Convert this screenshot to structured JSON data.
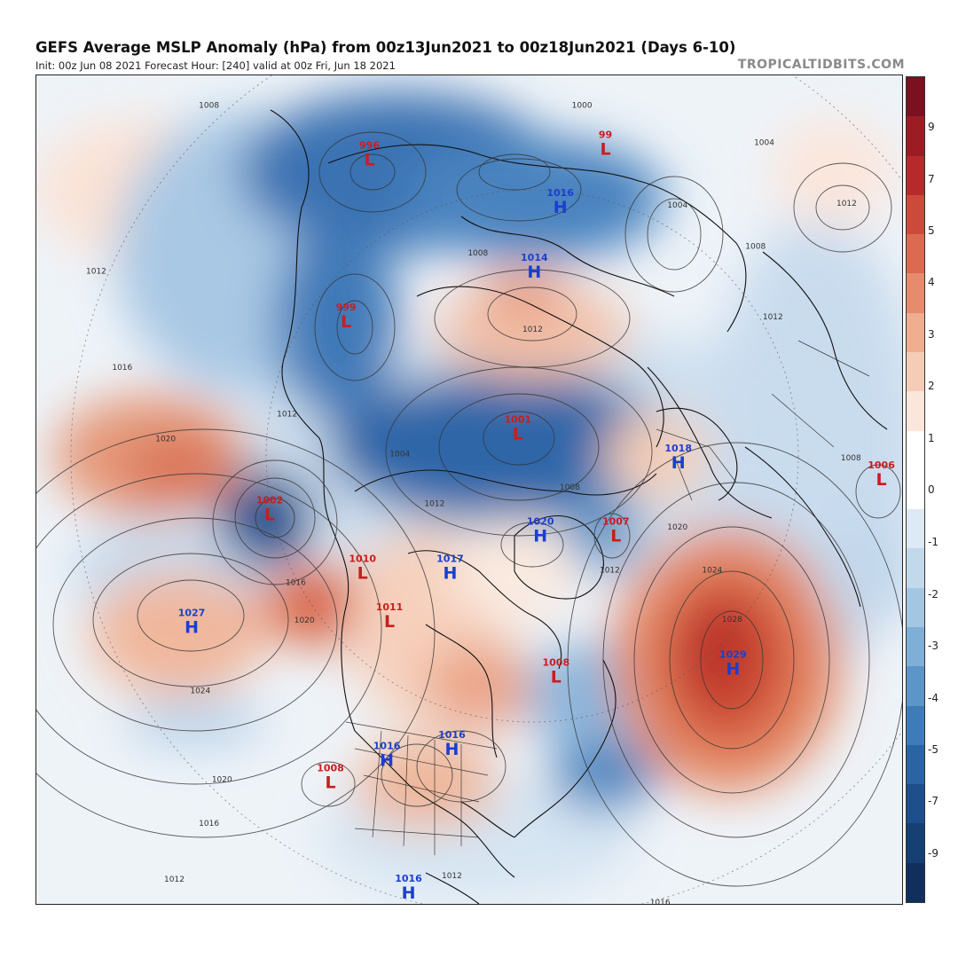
{
  "header": {
    "title": "GEFS Average MSLP Anomaly (hPa) from 00z13Jun2021 to 00z18Jun2021 (Days 6-10)",
    "subtitle": "Init: 00z Jun 08 2021   Forecast Hour: [240]   valid at 00z Fri, Jun 18 2021",
    "credit": "TROPICALTIDBITS.COM"
  },
  "colorbar": {
    "labels": [
      "9",
      "7",
      "5",
      "4",
      "3",
      "2",
      "1",
      "0",
      "-1",
      "-2",
      "-3",
      "-4",
      "-5",
      "-7",
      "-9"
    ],
    "colors": [
      "#7a1020",
      "#9c1c24",
      "#b72a2c",
      "#cc4a3a",
      "#db6a50",
      "#e68c6c",
      "#efae90",
      "#f5ccb6",
      "#fae6da",
      "#ffffff",
      "#ffffff",
      "#dde9f4",
      "#c2d9ec",
      "#a3c6e2",
      "#7fafd6",
      "#5c95c8",
      "#3d7cb8",
      "#2a64a4",
      "#1e4f8c",
      "#163f74",
      "#102f5c"
    ]
  },
  "pressure_centers": [
    {
      "type": "L",
      "value": "996",
      "fx": 0.385,
      "fy": 0.1
    },
    {
      "type": "L",
      "value": "99",
      "fx": 0.657,
      "fy": 0.087
    },
    {
      "type": "H",
      "value": "1016",
      "fx": 0.605,
      "fy": 0.157
    },
    {
      "type": "H",
      "value": "1014",
      "fx": 0.575,
      "fy": 0.235
    },
    {
      "type": "L",
      "value": "999",
      "fx": 0.358,
      "fy": 0.295
    },
    {
      "type": "L",
      "value": "1001",
      "fx": 0.556,
      "fy": 0.43
    },
    {
      "type": "H",
      "value": "1018",
      "fx": 0.741,
      "fy": 0.465
    },
    {
      "type": "L",
      "value": "1006",
      "fx": 0.975,
      "fy": 0.485
    },
    {
      "type": "L",
      "value": "1002",
      "fx": 0.27,
      "fy": 0.527
    },
    {
      "type": "H",
      "value": "1020",
      "fx": 0.582,
      "fy": 0.553
    },
    {
      "type": "L",
      "value": "1007",
      "fx": 0.669,
      "fy": 0.553
    },
    {
      "type": "L",
      "value": "1010",
      "fx": 0.377,
      "fy": 0.598
    },
    {
      "type": "H",
      "value": "1017",
      "fx": 0.478,
      "fy": 0.598
    },
    {
      "type": "H",
      "value": "1027",
      "fx": 0.18,
      "fy": 0.663
    },
    {
      "type": "L",
      "value": "1011",
      "fx": 0.408,
      "fy": 0.656
    },
    {
      "type": "H",
      "value": "1029",
      "fx": 0.804,
      "fy": 0.713
    },
    {
      "type": "L",
      "value": "1008",
      "fx": 0.6,
      "fy": 0.723
    },
    {
      "type": "H",
      "value": "1016",
      "fx": 0.405,
      "fy": 0.823
    },
    {
      "type": "H",
      "value": "1016",
      "fx": 0.48,
      "fy": 0.81
    },
    {
      "type": "L",
      "value": "1008",
      "fx": 0.34,
      "fy": 0.85
    },
    {
      "type": "H",
      "value": "1016",
      "fx": 0.43,
      "fy": 0.983
    }
  ],
  "isobar_labels": [
    {
      "text": "1008",
      "fx": 0.2,
      "fy": 0.04
    },
    {
      "text": "1012",
      "fx": 0.07,
      "fy": 0.24
    },
    {
      "text": "1016",
      "fx": 0.1,
      "fy": 0.356
    },
    {
      "text": "1020",
      "fx": 0.15,
      "fy": 0.442
    },
    {
      "text": "1012",
      "fx": 0.29,
      "fy": 0.412
    },
    {
      "text": "1016",
      "fx": 0.3,
      "fy": 0.615
    },
    {
      "text": "1020",
      "fx": 0.31,
      "fy": 0.66
    },
    {
      "text": "1024",
      "fx": 0.19,
      "fy": 0.745
    },
    {
      "text": "1020",
      "fx": 0.215,
      "fy": 0.852
    },
    {
      "text": "1016",
      "fx": 0.2,
      "fy": 0.905
    },
    {
      "text": "1012",
      "fx": 0.16,
      "fy": 0.972
    },
    {
      "text": "1012",
      "fx": 0.48,
      "fy": 0.968
    },
    {
      "text": "1016",
      "fx": 0.72,
      "fy": 1.0
    },
    {
      "text": "1008",
      "fx": 0.51,
      "fy": 0.218
    },
    {
      "text": "1012",
      "fx": 0.573,
      "fy": 0.31
    },
    {
      "text": "1008",
      "fx": 0.616,
      "fy": 0.5
    },
    {
      "text": "1012",
      "fx": 0.46,
      "fy": 0.52
    },
    {
      "text": "1012",
      "fx": 0.662,
      "fy": 0.6
    },
    {
      "text": "1020",
      "fx": 0.74,
      "fy": 0.548
    },
    {
      "text": "1024",
      "fx": 0.78,
      "fy": 0.6
    },
    {
      "text": "1028",
      "fx": 0.803,
      "fy": 0.659
    },
    {
      "text": "1008",
      "fx": 0.94,
      "fy": 0.465
    },
    {
      "text": "1012",
      "fx": 0.85,
      "fy": 0.295
    },
    {
      "text": "1008",
      "fx": 0.83,
      "fy": 0.21
    },
    {
      "text": "1004",
      "fx": 0.74,
      "fy": 0.16
    },
    {
      "text": "1004",
      "fx": 0.84,
      "fy": 0.085
    },
    {
      "text": "1000",
      "fx": 0.63,
      "fy": 0.04
    },
    {
      "text": "1012",
      "fx": 0.935,
      "fy": 0.158
    },
    {
      "text": "1004",
      "fx": 0.42,
      "fy": 0.46
    }
  ]
}
